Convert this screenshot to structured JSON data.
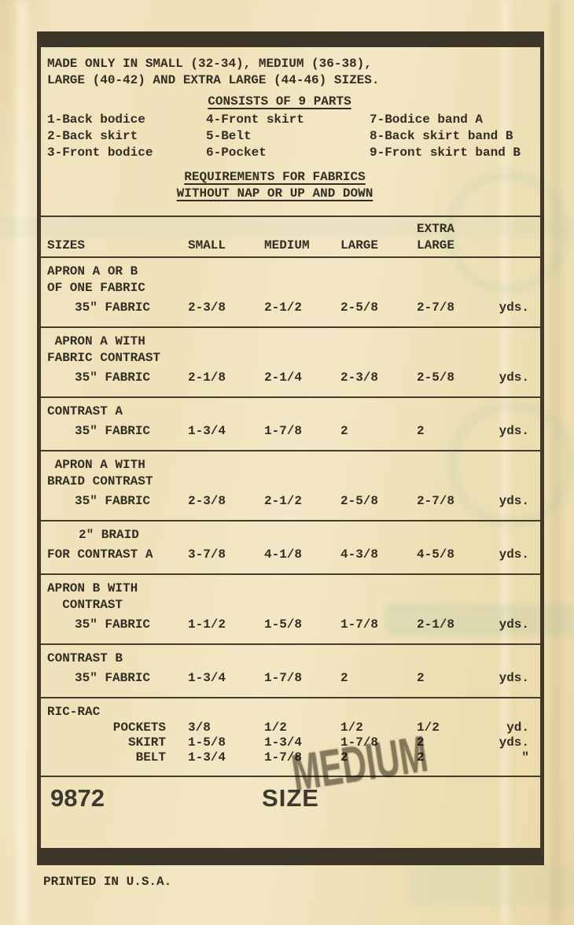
{
  "intro": {
    "line1": "MADE ONLY IN SMALL (32-34), MEDIUM (36-38),",
    "line2": "LARGE (40-42) AND EXTRA LARGE (44-46) SIZES."
  },
  "parts_list": {
    "heading": "CONSISTS OF 9 PARTS",
    "columns": [
      [
        "1-Back bodice",
        "2-Back skirt",
        "3-Front bodice"
      ],
      [
        "4-Front skirt",
        "5-Belt",
        "6-Pocket"
      ],
      [
        "7-Bodice band A",
        "8-Back skirt band B",
        "9-Front skirt band B"
      ]
    ]
  },
  "requirements_heading": {
    "line1": "REQUIREMENTS FOR FABRICS",
    "line2": "WITHOUT NAP OR UP AND DOWN"
  },
  "fabric_table": {
    "header": {
      "row_label": "SIZES",
      "size_columns": [
        "SMALL",
        "MEDIUM",
        "LARGE",
        "EXTRA\nLARGE"
      ]
    },
    "sections": [
      {
        "heading_lines": [
          "APRON A OR B",
          "OF ONE FABRIC"
        ],
        "rows": [
          {
            "label": "35\" FABRIC",
            "indent": true,
            "values": [
              "2-3/8",
              "2-1/2",
              "2-5/8",
              "2-7/8"
            ],
            "unit": "yds."
          }
        ]
      },
      {
        "heading_lines": [
          " APRON A WITH",
          "FABRIC CONTRAST"
        ],
        "rows": [
          {
            "label": "35\" FABRIC",
            "indent": true,
            "values": [
              "2-1/8",
              "2-1/4",
              "2-3/8",
              "2-5/8"
            ],
            "unit": "yds."
          }
        ]
      },
      {
        "heading_lines": [
          "CONTRAST A"
        ],
        "rows": [
          {
            "label": "35\" FABRIC",
            "indent": true,
            "values": [
              "1-3/4",
              "1-7/8",
              "2",
              "2"
            ],
            "unit": "yds."
          }
        ]
      },
      {
        "heading_lines": [
          " APRON A WITH",
          "BRAID CONTRAST"
        ],
        "rows": [
          {
            "label": "35\" FABRIC",
            "indent": true,
            "values": [
              "2-3/8",
              "2-1/2",
              "2-5/8",
              "2-7/8"
            ],
            "unit": "yds."
          }
        ]
      },
      {
        "heading_lines": [
          "2\" BRAID"
        ],
        "heading_indent": true,
        "rows": [
          {
            "label": "FOR CONTRAST A",
            "values": [
              "3-7/8",
              "4-1/8",
              "4-3/8",
              "4-5/8"
            ],
            "unit": "yds."
          }
        ]
      },
      {
        "heading_lines": [
          "APRON B WITH",
          "  CONTRAST"
        ],
        "rows": [
          {
            "label": "35\" FABRIC",
            "indent": true,
            "values": [
              "1-1/2",
              "1-5/8",
              "1-7/8",
              "2-1/8"
            ],
            "unit": "yds."
          }
        ]
      },
      {
        "heading_lines": [
          "CONTRAST B"
        ],
        "rows": [
          {
            "label": "35\" FABRIC",
            "indent": true,
            "values": [
              "1-3/4",
              "1-7/8",
              "2",
              "2"
            ],
            "unit": "yds."
          }
        ]
      },
      {
        "heading_lines": [
          "RIC-RAC"
        ],
        "compact": true,
        "rows": [
          {
            "label": "POCKETS",
            "align_right": true,
            "values": [
              "3/8",
              "1/2",
              "1/2",
              "1/2"
            ],
            "unit": "yd."
          },
          {
            "label": "SKIRT",
            "align_right": true,
            "values": [
              "1-5/8",
              "1-3/4",
              "1-7/8",
              "2"
            ],
            "unit": "yds."
          },
          {
            "label": "BELT",
            "align_right": true,
            "values": [
              "1-3/4",
              "1-7/8",
              "2",
              "2"
            ],
            "unit": "\""
          }
        ]
      }
    ]
  },
  "footer": {
    "pattern_number": "9872",
    "size_label": "SIZE",
    "printed_line": "PRINTED IN U.S.A."
  },
  "stamp": {
    "text": "MEDIUM"
  }
}
